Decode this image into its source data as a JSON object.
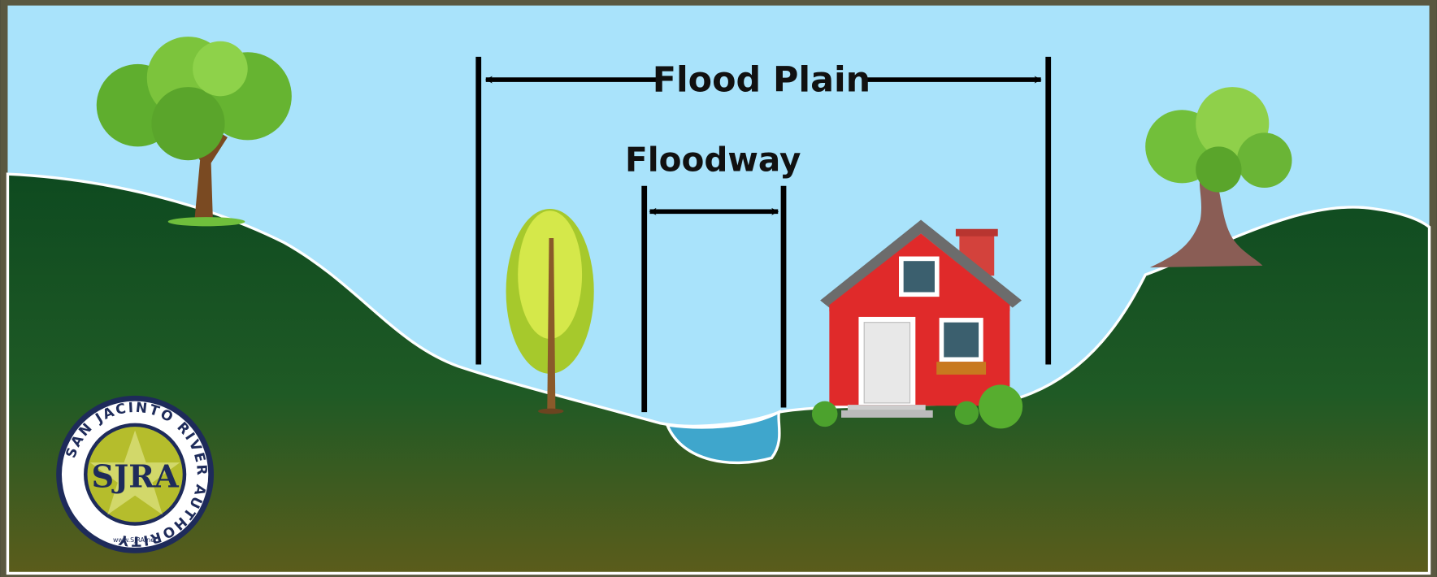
{
  "labels": {
    "flood_plain": "Flood Plain",
    "floodway": "Floodway"
  },
  "logo": {
    "ring_text": "SAN JACINTO RIVER AUTHORITY",
    "initials": "SJRA",
    "website": "www.SJRA.net"
  }
}
